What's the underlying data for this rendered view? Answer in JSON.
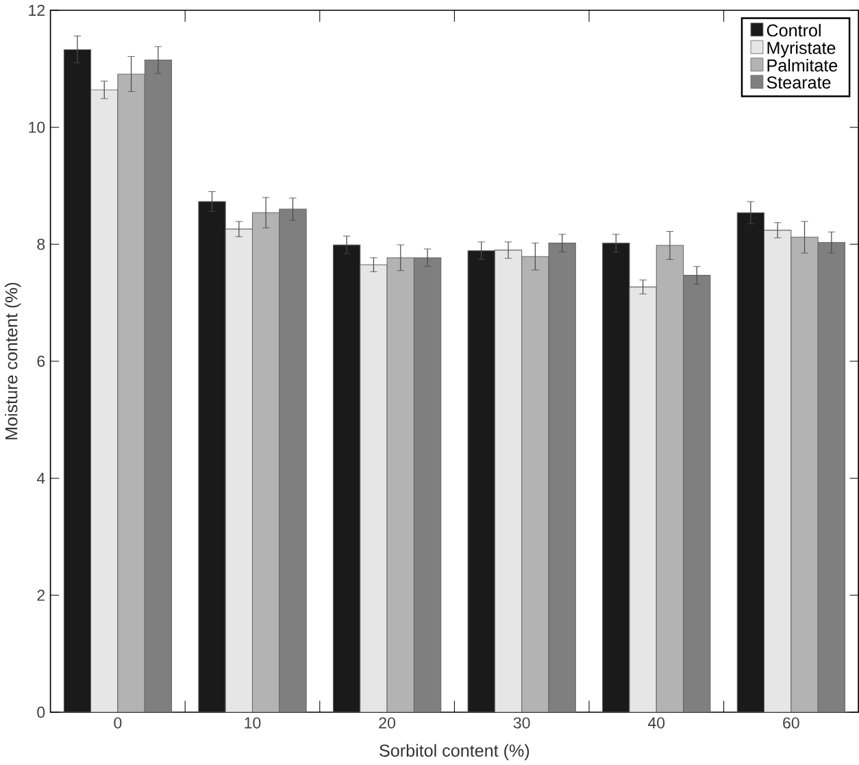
{
  "chart_data": {
    "type": "bar",
    "xlabel": "Sorbitol content (%)",
    "ylabel": "Moisture content (%)",
    "categories": [
      "0",
      "10",
      "20",
      "30",
      "40",
      "60"
    ],
    "series": [
      {
        "name": "Control",
        "color": "#1a1a1a",
        "values": [
          11.33,
          8.73,
          7.99,
          7.89,
          8.02,
          8.54
        ],
        "errors": [
          0.23,
          0.17,
          0.15,
          0.15,
          0.15,
          0.19
        ]
      },
      {
        "name": "Myristate",
        "color": "#e6e6e6",
        "values": [
          10.64,
          8.26,
          7.65,
          7.9,
          7.27,
          8.24
        ],
        "errors": [
          0.15,
          0.13,
          0.12,
          0.14,
          0.12,
          0.13
        ]
      },
      {
        "name": "Palmitate",
        "color": "#b3b3b3",
        "values": [
          10.91,
          8.54,
          7.77,
          7.79,
          7.98,
          8.12
        ],
        "errors": [
          0.3,
          0.26,
          0.22,
          0.23,
          0.24,
          0.27
        ]
      },
      {
        "name": "Stearate",
        "color": "#7f7f7f",
        "values": [
          11.15,
          8.6,
          7.77,
          8.02,
          7.47,
          8.03
        ],
        "errors": [
          0.23,
          0.19,
          0.15,
          0.15,
          0.15,
          0.18
        ]
      }
    ],
    "ylim": [
      0,
      12
    ],
    "yticks": [
      0,
      2,
      4,
      6,
      8,
      10,
      12
    ],
    "grid": false,
    "legend": "top right"
  }
}
